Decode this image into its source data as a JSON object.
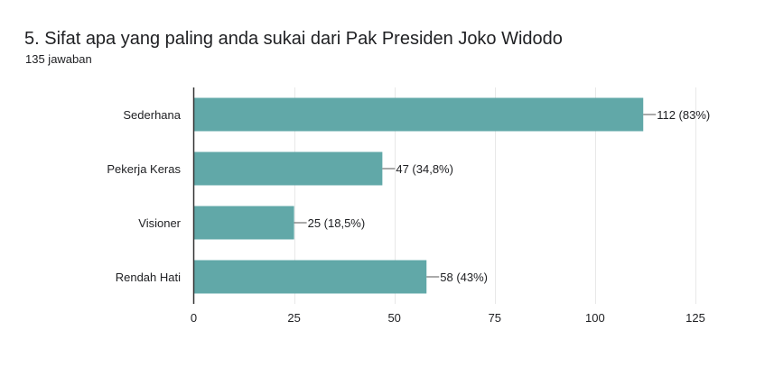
{
  "header": {
    "title": "5. Sifat apa yang paling anda sukai dari Pak Presiden Joko Widodo",
    "response_count": "135 jawaban"
  },
  "colors": {
    "bar": "#61a8a8",
    "grid": "#e8e8e8",
    "axis": "#333333",
    "text": "#202124",
    "connector": "#555555"
  },
  "chart_data": {
    "type": "bar",
    "orientation": "horizontal",
    "categories": [
      "Sederhana",
      "Pekerja Keras",
      "Visioner",
      "Rendah Hati"
    ],
    "values": [
      112,
      47,
      25,
      58
    ],
    "data_labels": [
      "112 (83%)",
      "47 (34,8%)",
      "25 (18,5%)",
      "58 (43%)"
    ],
    "xlim": [
      0,
      125
    ],
    "xticks": [
      0,
      25,
      50,
      75,
      100,
      125
    ],
    "xtick_labels": [
      "0",
      "25",
      "50",
      "75",
      "100",
      "125"
    ],
    "grid": true
  }
}
